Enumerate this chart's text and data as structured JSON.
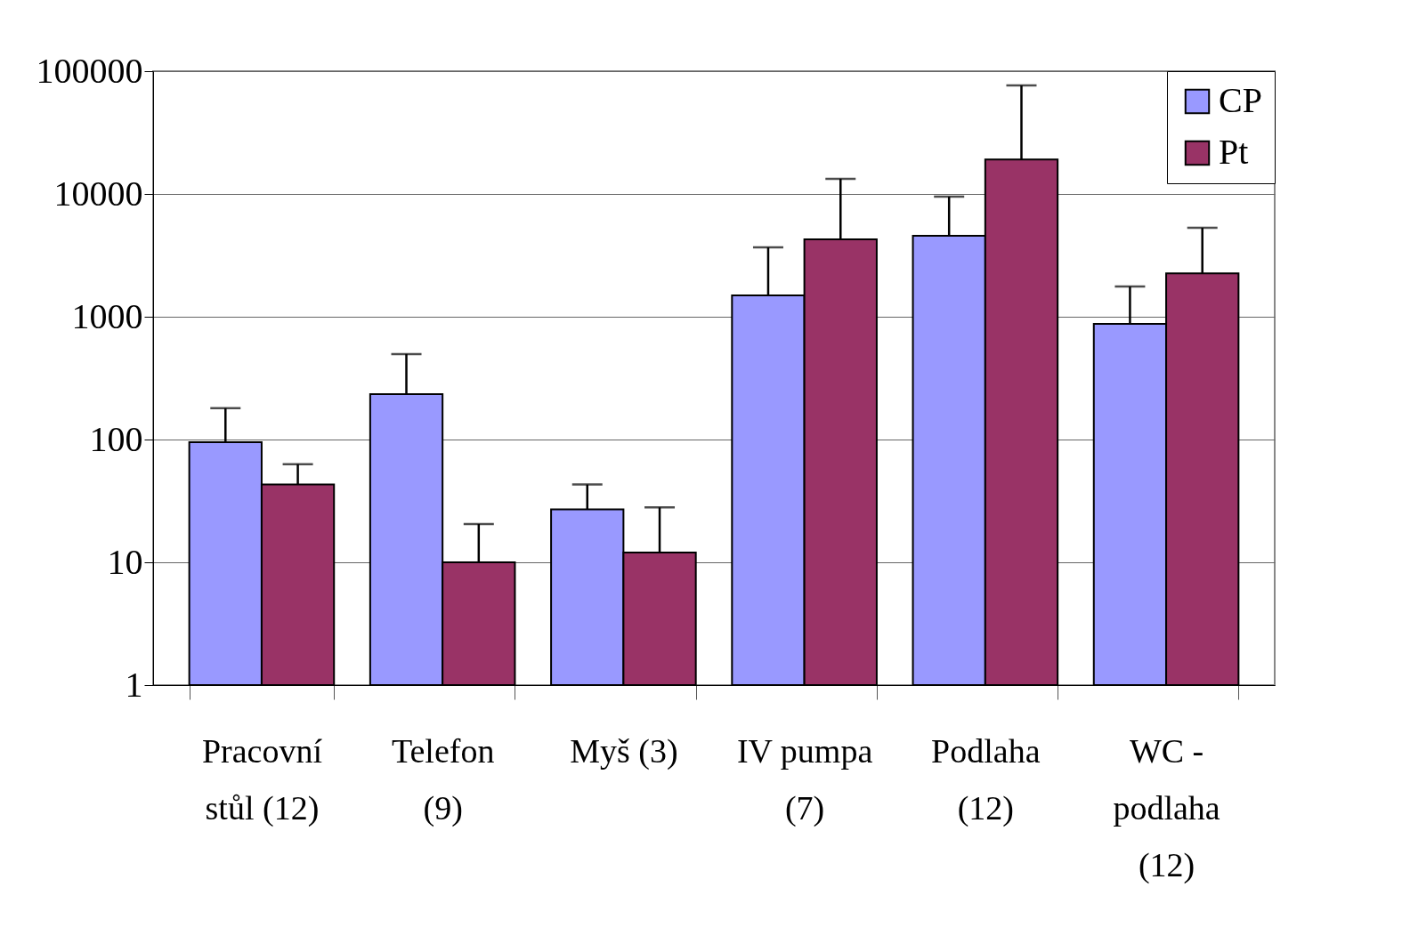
{
  "chart_data": {
    "type": "bar",
    "categories": [
      "Pracovní\nstůl (12)",
      "Telefon\n(9)",
      "Myš (3)",
      "IV pumpa\n(7)",
      "Podlaha\n(12)",
      "WC -\npodlaha\n(12)"
    ],
    "series": [
      {
        "name": "CP",
        "color": "#9999ff",
        "values": [
          95,
          234,
          27,
          1490,
          4570,
          875
        ],
        "errors": [
          [
            95,
            180
          ],
          [
            234,
            497
          ],
          [
            27,
            43
          ],
          [
            1490,
            3670
          ],
          [
            4570,
            9500
          ],
          [
            875,
            1760
          ]
        ]
      },
      {
        "name": "Pt",
        "color": "#993366",
        "values": [
          43,
          10,
          12,
          4270,
          19100,
          2260
        ],
        "errors": [
          [
            43,
            63
          ],
          [
            10,
            20.5
          ],
          [
            12,
            28
          ],
          [
            4270,
            13300
          ],
          [
            19100,
            76500
          ],
          [
            2260,
            5300
          ]
        ]
      }
    ],
    "log": "y",
    "ylim": [
      1,
      100000
    ],
    "yticks": [
      1,
      10,
      100,
      1000,
      10000,
      100000
    ],
    "grid": "y",
    "legend": "top right"
  }
}
